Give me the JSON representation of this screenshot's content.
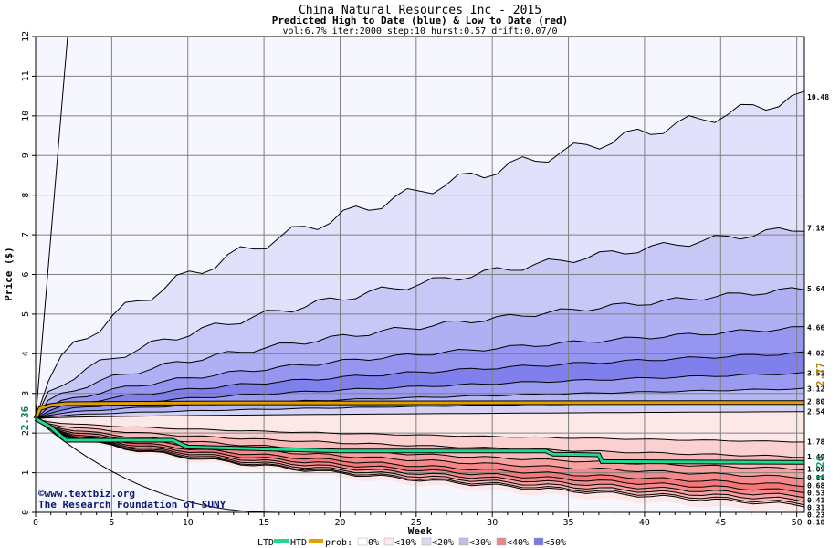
{
  "chart_data": {
    "type": "area",
    "title": "China Natural Resources Inc - 2015",
    "subtitle": "Predicted High to Date (blue) &  Low to Date (red)",
    "params": "vol:6.7% iter:2000 step:10 hurst:0.57 drift:0.07/0",
    "xlabel": "Week",
    "ylabel": "Price ($)",
    "xlim": [
      0,
      50.5
    ],
    "ylim": [
      0,
      12
    ],
    "x_ticks": [
      0,
      5,
      10,
      15,
      20,
      25,
      30,
      35,
      40,
      45,
      50
    ],
    "y_ticks": [
      0,
      1,
      2,
      3,
      4,
      5,
      6,
      7,
      8,
      9,
      10,
      11,
      12
    ],
    "grid": true,
    "start_price": 2.36,
    "start_label": "2.36",
    "htd_current": 2.77,
    "htd_label": "2.77",
    "ltd_current": 1.26,
    "ltd_label": "1.26",
    "high_quantiles": [
      {
        "label": "10.48",
        "end": 10.48,
        "fill": "#e1e1fb"
      },
      {
        "label": "7.18",
        "end": 7.18,
        "fill": "#c8c8f7"
      },
      {
        "label": "5.64",
        "end": 5.64,
        "fill": "#afaff4"
      },
      {
        "label": "4.66",
        "end": 4.66,
        "fill": "#9696f0"
      },
      {
        "label": "4.02",
        "end": 4.02,
        "fill": "#8080ec"
      },
      {
        "label": "3.51",
        "end": 3.51,
        "fill": "#9a9af0"
      },
      {
        "label": "3.12",
        "end": 3.12,
        "fill": "#b6b6f5"
      },
      {
        "label": "2.80",
        "end": 2.8,
        "fill": "#d2d2f9"
      }
    ],
    "median_line": {
      "label": "2.54",
      "end": 2.54
    },
    "low_quantiles": [
      {
        "label": "1.78",
        "end": 1.78,
        "fill": "#fde8e8"
      },
      {
        "label": "1.40",
        "end": 1.4,
        "fill": "#fbd0d0"
      },
      {
        "label": "1.09",
        "end": 1.09,
        "fill": "#f9b8b8"
      },
      {
        "label": "0.88",
        "end": 0.88,
        "fill": "#f7a0a0"
      },
      {
        "label": "0.68",
        "end": 0.68,
        "fill": "#f58888"
      },
      {
        "label": "0.53",
        "end": 0.53,
        "fill": "#f47878"
      },
      {
        "label": "0.41",
        "end": 0.41,
        "fill": "#f58888"
      },
      {
        "label": "0.31",
        "end": 0.31,
        "fill": "#f7a0a0"
      },
      {
        "label": "0.23",
        "end": 0.23,
        "fill": "#f9b8b8"
      },
      {
        "label": "0.18",
        "end": 0.18,
        "fill": "#fbd0d0"
      }
    ],
    "htd_series": {
      "name": "HTD",
      "color": "#e0a000",
      "points": [
        [
          0,
          2.36
        ],
        [
          0.3,
          2.62
        ],
        [
          1,
          2.7
        ],
        [
          2,
          2.74
        ],
        [
          10,
          2.76
        ],
        [
          50.5,
          2.77
        ]
      ]
    },
    "ltd_series": {
      "name": "LTD",
      "color": "#20d890",
      "points": [
        [
          0,
          2.36
        ],
        [
          1,
          2.15
        ],
        [
          2,
          1.82
        ],
        [
          9,
          1.82
        ],
        [
          9.8,
          1.68
        ],
        [
          10,
          1.65
        ],
        [
          20,
          1.55
        ],
        [
          33.5,
          1.55
        ],
        [
          34,
          1.47
        ],
        [
          37,
          1.45
        ],
        [
          37.2,
          1.28
        ],
        [
          50.5,
          1.26
        ]
      ]
    }
  },
  "credit_line1": "©www.textbiz.org",
  "credit_line2": "The Research Foundation of SUNY",
  "legend": {
    "ltd": "LTD",
    "htd": "HTD",
    "prob_label": "prob:",
    "items": [
      "0%",
      "<10%",
      "<20%",
      "<30%",
      "<40%",
      "<50%"
    ],
    "colors": [
      "#ffffff",
      "#fde8e8",
      "#ddd8f4",
      "#c8b8ee",
      "#e88888",
      "#7878e8"
    ]
  }
}
